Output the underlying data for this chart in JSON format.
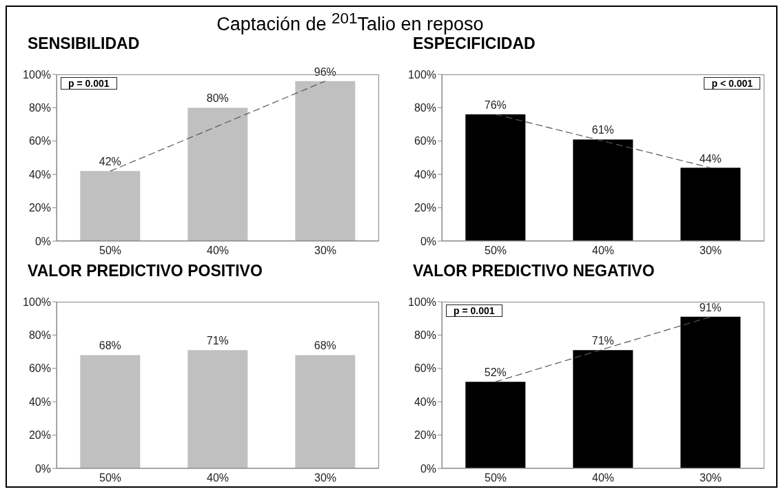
{
  "chart_data": [
    {
      "type": "other",
      "title": "Captación de $^{201}$Talio en reposo"
    },
    {
      "type": "bar",
      "title": "SENSIBILIDAD",
      "categories": [
        "50%",
        "40%",
        "30%"
      ],
      "ylim": [
        0,
        100
      ],
      "yticks": [
        {
          "value": 0,
          "label": "0%"
        },
        {
          "value": 20,
          "label": "20%"
        },
        {
          "value": 40,
          "label": "40%"
        },
        {
          "value": 60,
          "label": "60%"
        },
        {
          "value": 80,
          "label": "80%"
        },
        {
          "value": 100,
          "label": "100%"
        }
      ],
      "grid": false,
      "legend": false,
      "annotations": [
        "p = 0.001"
      ],
      "series": [
        {
          "type": "bar",
          "color": "#c0c0c0",
          "values": [
            42,
            80,
            96
          ],
          "value_labels": [
            "42%",
            "80%",
            "96%"
          ]
        },
        {
          "type": "line",
          "color": "#555555",
          "line_style": "dashed",
          "marker": "none",
          "values": [
            42,
            null,
            96
          ]
        }
      ]
    },
    {
      "type": "bar",
      "title": "ESPECIFICIDAD",
      "categories": [
        "50%",
        "40%",
        "30%"
      ],
      "ylim": [
        0,
        100
      ],
      "yticks": [
        {
          "value": 0,
          "label": "0%"
        },
        {
          "value": 20,
          "label": "20%"
        },
        {
          "value": 40,
          "label": "40%"
        },
        {
          "value": 60,
          "label": "60%"
        },
        {
          "value": 80,
          "label": "80%"
        },
        {
          "value": 100,
          "label": "100%"
        }
      ],
      "grid": false,
      "legend": false,
      "annotations": [
        "p < 0.001"
      ],
      "series": [
        {
          "type": "bar",
          "color": "#000000",
          "values": [
            76,
            61,
            44
          ],
          "value_labels": [
            "76%",
            "61%",
            "44%"
          ]
        },
        {
          "type": "line",
          "color": "#555555",
          "line_style": "dashed",
          "marker": "none",
          "values": [
            76,
            null,
            44
          ]
        }
      ]
    },
    {
      "type": "bar",
      "title": "VALOR PREDICTIVO POSITIVO",
      "categories": [
        "50%",
        "40%",
        "30%"
      ],
      "ylim": [
        0,
        100
      ],
      "yticks": [
        {
          "value": 0,
          "label": "0%"
        },
        {
          "value": 20,
          "label": "20%"
        },
        {
          "value": 40,
          "label": "40%"
        },
        {
          "value": 60,
          "label": "60%"
        },
        {
          "value": 80,
          "label": "80%"
        },
        {
          "value": 100,
          "label": "100%"
        }
      ],
      "grid": false,
      "legend": false,
      "series": [
        {
          "type": "bar",
          "color": "#c0c0c0",
          "values": [
            68,
            71,
            68
          ],
          "value_labels": [
            "68%",
            "71%",
            "68%"
          ]
        }
      ]
    },
    {
      "type": "bar",
      "title": "VALOR PREDICTIVO NEGATIVO",
      "categories": [
        "50%",
        "40%",
        "30%"
      ],
      "ylim": [
        0,
        100
      ],
      "yticks": [
        {
          "value": 0,
          "label": "0%"
        },
        {
          "value": 20,
          "label": "20%"
        },
        {
          "value": 40,
          "label": "40%"
        },
        {
          "value": 60,
          "label": "60%"
        },
        {
          "value": 80,
          "label": "80%"
        },
        {
          "value": 100,
          "label": "100%"
        }
      ],
      "grid": false,
      "legend": false,
      "annotations": [
        "p = 0.001"
      ],
      "series": [
        {
          "type": "bar",
          "color": "#000000",
          "values": [
            52,
            71,
            91
          ],
          "value_labels": [
            "52%",
            "71%",
            "91%"
          ]
        },
        {
          "type": "line",
          "color": "#555555",
          "line_style": "dashed",
          "marker": "none",
          "values": [
            52,
            null,
            91
          ]
        }
      ]
    }
  ]
}
